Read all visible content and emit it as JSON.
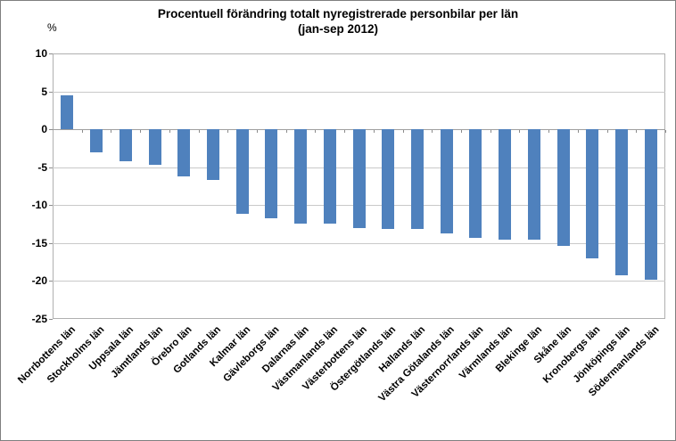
{
  "chart_data": {
    "type": "bar",
    "title": "Procentuell förändring totalt nyregistrerade personbilar per län",
    "subtitle": "(jan-sep 2012)",
    "unit_label": "%",
    "xlabel": "",
    "ylabel": "%",
    "categories": [
      "Norrbottens län",
      "Stockholms län",
      "Uppsala län",
      "Jämtlands län",
      "Örebro län",
      "Gotlands län",
      "Kalmar län",
      "Gävleborgs län",
      "Dalarnas län",
      "Västmanlands län",
      "Västerbottens län",
      "Östergötlands län",
      "Hallands län",
      "Västra Götalands län",
      "Västernorrlands län",
      "Värmlands län",
      "Blekinge län",
      "Skåne län",
      "Kronobergs län",
      "Jönköpings län",
      "Södermanlands län"
    ],
    "values": [
      4.5,
      -3.0,
      -4.2,
      -4.7,
      -6.2,
      -6.7,
      -11.2,
      -11.7,
      -12.4,
      -12.5,
      -13.0,
      -13.1,
      -13.2,
      -13.7,
      -14.3,
      -14.5,
      -14.6,
      -15.4,
      -17.0,
      -19.2,
      -19.9
    ],
    "ylim": [
      -25,
      10
    ],
    "yticks": [
      10,
      5,
      0,
      -5,
      -10,
      -15,
      -20,
      -25
    ],
    "grid": true,
    "legend": false,
    "bar_color": "#4F81BD",
    "gridline_color": "#c9c9c9",
    "background_color": "#ffffff",
    "text_color": "#000000"
  }
}
